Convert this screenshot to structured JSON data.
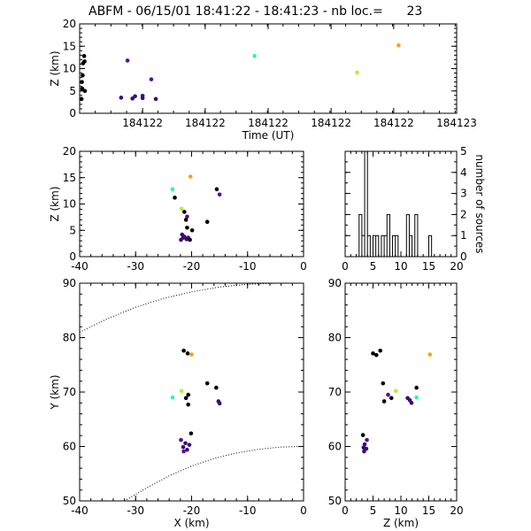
{
  "title": "ABFM - 06/15/01 18:41:22 - 18:41:23 - nb loc.=      23",
  "chart_data": [
    {
      "id": "time_z",
      "type": "scatter",
      "xlabel": "Time (UT)",
      "ylabel": "Z (km)",
      "xlim": [
        0,
        1
      ],
      "ylim": [
        0,
        20
      ],
      "xtick_labels": [
        "184122",
        "184122",
        "184122",
        "184122",
        "184122",
        "184123"
      ],
      "xtick_values": [
        0.167,
        0.333,
        0.5,
        0.667,
        0.833,
        1.0
      ],
      "yticks": [
        0,
        5,
        10,
        15,
        20
      ],
      "points": [
        {
          "x": 0.005,
          "y": 3.2,
          "color": "#000000"
        },
        {
          "x": 0.007,
          "y": 5.5,
          "color": "#000000"
        },
        {
          "x": 0.006,
          "y": 7.0,
          "color": "#000000"
        },
        {
          "x": 0.008,
          "y": 8.5,
          "color": "#000000"
        },
        {
          "x": 0.009,
          "y": 11.2,
          "color": "#000000"
        },
        {
          "x": 0.012,
          "y": 12.8,
          "color": "#000000"
        },
        {
          "x": 0.013,
          "y": 11.6,
          "color": "#000000"
        },
        {
          "x": 0.014,
          "y": 5.0,
          "color": "#000000"
        },
        {
          "x": 0.11,
          "y": 3.5,
          "color": "#3a0a7a"
        },
        {
          "x": 0.127,
          "y": 11.8,
          "color": "#5a0a99"
        },
        {
          "x": 0.14,
          "y": 3.3,
          "color": "#3a0a7a"
        },
        {
          "x": 0.147,
          "y": 3.8,
          "color": "#3a0a7a"
        },
        {
          "x": 0.167,
          "y": 3.4,
          "color": "#3a0a7a"
        },
        {
          "x": 0.167,
          "y": 3.9,
          "color": "#3a0a7a"
        },
        {
          "x": 0.19,
          "y": 7.6,
          "color": "#5a0a99"
        },
        {
          "x": 0.202,
          "y": 3.2,
          "color": "#3a0a7a"
        },
        {
          "x": 0.464,
          "y": 12.8,
          "color": "#33eec0"
        },
        {
          "x": 0.736,
          "y": 9.1,
          "color": "#b5ee33"
        },
        {
          "x": 0.846,
          "y": 15.2,
          "color": "#f5a511"
        }
      ]
    },
    {
      "id": "x_z",
      "type": "scatter",
      "xlabel": "",
      "ylabel": "Z (km)",
      "xlim": [
        -40,
        0
      ],
      "ylim": [
        0,
        20
      ],
      "xticks": [
        -40,
        -30,
        -20,
        -10,
        0
      ],
      "yticks": [
        0,
        5,
        10,
        15,
        20
      ],
      "points": [
        {
          "x": -20.2,
          "y": 15.2,
          "color": "#f5a511"
        },
        {
          "x": -23.4,
          "y": 12.8,
          "color": "#33eec0"
        },
        {
          "x": -21.8,
          "y": 9.1,
          "color": "#b5ee33"
        },
        {
          "x": -15.5,
          "y": 12.8,
          "color": "#000000"
        },
        {
          "x": -15.0,
          "y": 11.8,
          "color": "#5a0a99"
        },
        {
          "x": -23.0,
          "y": 11.2,
          "color": "#000000"
        },
        {
          "x": -21.3,
          "y": 8.5,
          "color": "#000000"
        },
        {
          "x": -20.8,
          "y": 7.6,
          "color": "#5a0a99"
        },
        {
          "x": -21.0,
          "y": 7.0,
          "color": "#000000"
        },
        {
          "x": -17.2,
          "y": 6.6,
          "color": "#000000"
        },
        {
          "x": -20.8,
          "y": 5.5,
          "color": "#000000"
        },
        {
          "x": -19.9,
          "y": 5.0,
          "color": "#000000"
        },
        {
          "x": -21.7,
          "y": 4.2,
          "color": "#3a0a7a"
        },
        {
          "x": -21.3,
          "y": 3.8,
          "color": "#3a0a7a"
        },
        {
          "x": -20.6,
          "y": 3.6,
          "color": "#3a0a7a"
        },
        {
          "x": -21.9,
          "y": 3.2,
          "color": "#3a0a7a"
        },
        {
          "x": -20.9,
          "y": 3.3,
          "color": "#3a0a7a"
        },
        {
          "x": -20.3,
          "y": 3.2,
          "color": "#000000"
        },
        {
          "x": -21.5,
          "y": 3.6,
          "color": "#3a0a7a"
        }
      ]
    },
    {
      "id": "histogram",
      "type": "bar",
      "xlabel": "",
      "ylabel": "number of sources",
      "xlim": [
        0,
        20
      ],
      "ylim": [
        0,
        5
      ],
      "xticks": [
        0,
        5,
        10,
        15,
        20
      ],
      "yticks": [
        0,
        1,
        2,
        3,
        4,
        5
      ],
      "bin_width": 0.5,
      "bin_starts": [
        2.5,
        3.0,
        3.5,
        4.0,
        5.0,
        5.5,
        6.5,
        7.0,
        7.5,
        8.5,
        9.0,
        11.0,
        11.5,
        12.5,
        15.0
      ],
      "values": [
        2,
        1,
        5,
        1,
        1,
        1,
        1,
        1,
        2,
        1,
        1,
        2,
        1,
        2,
        1
      ]
    },
    {
      "id": "x_y",
      "type": "scatter",
      "xlabel": "X (km)",
      "ylabel": "Y (km)",
      "xlim": [
        -40,
        0
      ],
      "ylim": [
        50,
        90
      ],
      "xticks": [
        -40,
        -30,
        -20,
        -10,
        0
      ],
      "yticks": [
        50,
        60,
        70,
        80,
        90
      ],
      "points": [
        {
          "x": -21.4,
          "y": 77.6,
          "color": "#000000"
        },
        {
          "x": -20.7,
          "y": 77.1,
          "color": "#000000"
        },
        {
          "x": -20.0,
          "y": 76.9,
          "color": "#f5a511"
        },
        {
          "x": -17.2,
          "y": 71.6,
          "color": "#000000"
        },
        {
          "x": -15.6,
          "y": 70.8,
          "color": "#000000"
        },
        {
          "x": -21.8,
          "y": 70.2,
          "color": "#b5ee33"
        },
        {
          "x": -20.6,
          "y": 69.5,
          "color": "#000000"
        },
        {
          "x": -23.4,
          "y": 69.0,
          "color": "#33eec0"
        },
        {
          "x": -21.0,
          "y": 68.9,
          "color": "#000000"
        },
        {
          "x": -20.6,
          "y": 67.7,
          "color": "#000000"
        },
        {
          "x": -15.2,
          "y": 68.3,
          "color": "#3a0a7a"
        },
        {
          "x": -15.0,
          "y": 67.9,
          "color": "#3a0a7a"
        },
        {
          "x": -20.1,
          "y": 62.4,
          "color": "#000000"
        },
        {
          "x": -21.9,
          "y": 61.2,
          "color": "#5a0a99"
        },
        {
          "x": -21.1,
          "y": 60.6,
          "color": "#3a0a7a"
        },
        {
          "x": -20.4,
          "y": 60.3,
          "color": "#3a0a7a"
        },
        {
          "x": -21.5,
          "y": 59.9,
          "color": "#3a0a7a"
        },
        {
          "x": -20.8,
          "y": 59.4,
          "color": "#3a0a7a"
        },
        {
          "x": -21.4,
          "y": 59.1,
          "color": "#5a0a99"
        }
      ],
      "dotted_curves": [
        [
          [
            -40,
            81.0
          ],
          [
            -35,
            83.5
          ],
          [
            -30,
            85.6
          ],
          [
            -25,
            87.2
          ],
          [
            -20,
            88.4
          ],
          [
            -15,
            89.3
          ],
          [
            -10,
            89.8
          ],
          [
            -5,
            90.0
          ],
          [
            0,
            90.0
          ]
        ],
        [
          [
            -32,
            50.0
          ],
          [
            -28,
            52.4
          ],
          [
            -24,
            54.6
          ],
          [
            -20,
            56.4
          ],
          [
            -16,
            57.8
          ],
          [
            -12,
            58.8
          ],
          [
            -8,
            59.5
          ],
          [
            -4,
            59.9
          ],
          [
            0,
            60.0
          ]
        ]
      ]
    },
    {
      "id": "z_y",
      "type": "scatter",
      "xlabel": "Z (km)",
      "ylabel": "",
      "xlim": [
        0,
        20
      ],
      "ylim": [
        50,
        90
      ],
      "xticks": [
        0,
        5,
        10,
        15,
        20
      ],
      "yticks": [
        50,
        60,
        70,
        80,
        90
      ],
      "points": [
        {
          "x": 5.0,
          "y": 77.1,
          "color": "#000000"
        },
        {
          "x": 5.6,
          "y": 76.8,
          "color": "#000000"
        },
        {
          "x": 6.3,
          "y": 77.6,
          "color": "#000000"
        },
        {
          "x": 15.2,
          "y": 76.9,
          "color": "#f5a511"
        },
        {
          "x": 6.8,
          "y": 71.6,
          "color": "#000000"
        },
        {
          "x": 12.8,
          "y": 70.8,
          "color": "#000000"
        },
        {
          "x": 9.1,
          "y": 70.2,
          "color": "#b5ee33"
        },
        {
          "x": 7.7,
          "y": 69.5,
          "color": "#5a0a99"
        },
        {
          "x": 8.3,
          "y": 68.9,
          "color": "#000000"
        },
        {
          "x": 7.0,
          "y": 68.3,
          "color": "#000000"
        },
        {
          "x": 11.2,
          "y": 68.9,
          "color": "#3a0a7a"
        },
        {
          "x": 11.6,
          "y": 68.5,
          "color": "#3a0a7a"
        },
        {
          "x": 11.9,
          "y": 68.0,
          "color": "#3a0a7a"
        },
        {
          "x": 12.8,
          "y": 69.0,
          "color": "#33eec0"
        },
        {
          "x": 3.2,
          "y": 62.1,
          "color": "#000000"
        },
        {
          "x": 3.9,
          "y": 61.2,
          "color": "#5a0a99"
        },
        {
          "x": 3.5,
          "y": 60.4,
          "color": "#3a0a7a"
        },
        {
          "x": 3.3,
          "y": 59.8,
          "color": "#3a0a7a"
        },
        {
          "x": 3.8,
          "y": 59.6,
          "color": "#3a0a7a"
        },
        {
          "x": 3.4,
          "y": 59.1,
          "color": "#3a0a7a"
        }
      ]
    }
  ]
}
